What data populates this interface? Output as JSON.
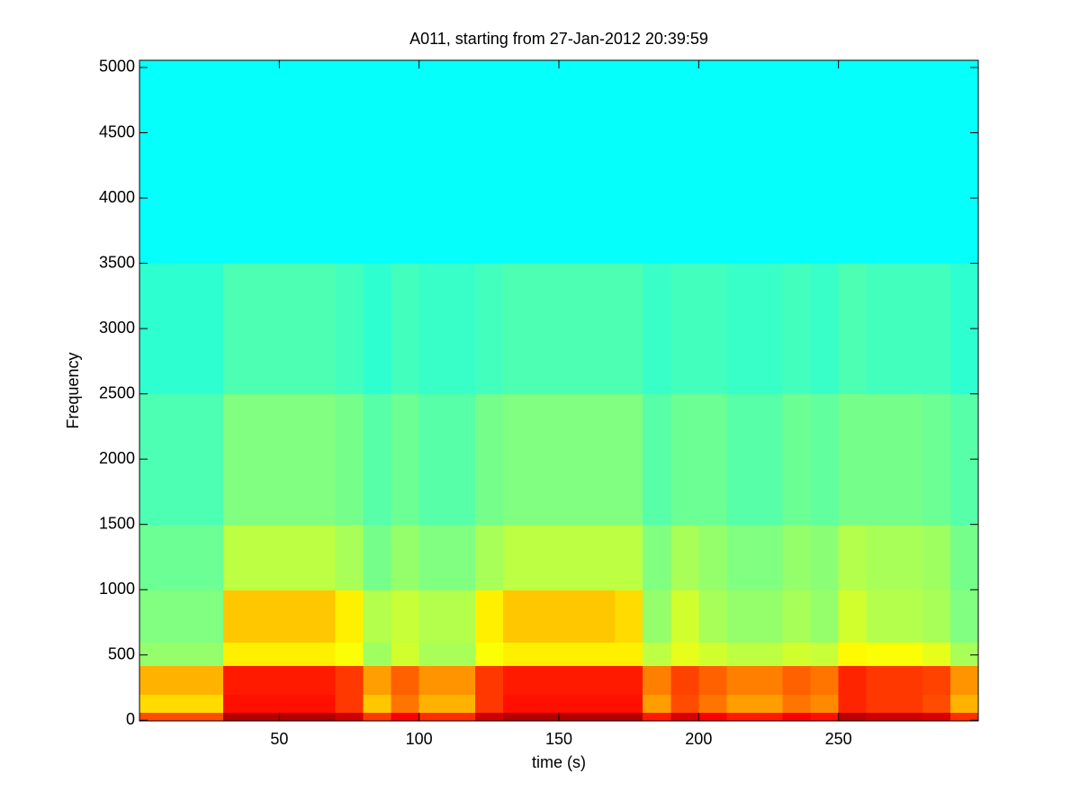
{
  "chart_data": {
    "type": "heatmap",
    "title": "A011, starting from 27-Jan-2012 20:39:59",
    "xlabel": "time (s)",
    "ylabel": "Frequency",
    "xlim": [
      0,
      300
    ],
    "ylim": [
      -5,
      5055
    ],
    "xticks": [
      50,
      100,
      150,
      200,
      250
    ],
    "yticks": [
      0,
      500,
      1000,
      1500,
      2000,
      2500,
      3000,
      3500,
      4000,
      4500,
      5000
    ],
    "colormap": "jet",
    "zlim": [
      0,
      1
    ],
    "xbins": [
      0,
      10,
      20,
      30,
      40,
      50,
      60,
      70,
      80,
      90,
      100,
      110,
      120,
      130,
      140,
      150,
      160,
      170,
      180,
      190,
      200,
      210,
      220,
      230,
      240,
      250,
      260,
      270,
      280,
      290,
      300
    ],
    "ybins": [
      0,
      60,
      200,
      420,
      600,
      1000,
      1500,
      2500,
      3500,
      5050
    ],
    "z": [
      [
        0.8,
        0.8,
        0.8,
        0.95,
        0.95,
        0.95,
        0.95,
        0.92,
        0.82,
        0.88,
        0.83,
        0.83,
        0.92,
        0.95,
        0.95,
        0.95,
        0.95,
        0.95,
        0.85,
        0.91,
        0.88,
        0.85,
        0.85,
        0.88,
        0.86,
        0.94,
        0.92,
        0.92,
        0.91,
        0.83
      ],
      [
        0.66,
        0.66,
        0.66,
        0.86,
        0.86,
        0.86,
        0.86,
        0.82,
        0.68,
        0.76,
        0.7,
        0.7,
        0.82,
        0.86,
        0.86,
        0.86,
        0.86,
        0.86,
        0.72,
        0.8,
        0.76,
        0.72,
        0.72,
        0.76,
        0.74,
        0.84,
        0.82,
        0.82,
        0.8,
        0.7
      ],
      [
        0.7,
        0.7,
        0.7,
        0.85,
        0.85,
        0.85,
        0.85,
        0.82,
        0.72,
        0.78,
        0.73,
        0.73,
        0.82,
        0.85,
        0.85,
        0.85,
        0.85,
        0.85,
        0.75,
        0.81,
        0.78,
        0.75,
        0.75,
        0.78,
        0.76,
        0.84,
        0.82,
        0.82,
        0.81,
        0.73
      ],
      [
        0.52,
        0.52,
        0.52,
        0.64,
        0.64,
        0.64,
        0.64,
        0.62,
        0.53,
        0.58,
        0.54,
        0.54,
        0.62,
        0.64,
        0.64,
        0.64,
        0.64,
        0.64,
        0.56,
        0.6,
        0.58,
        0.56,
        0.56,
        0.58,
        0.57,
        0.63,
        0.62,
        0.62,
        0.6,
        0.54
      ],
      [
        0.5,
        0.5,
        0.5,
        0.68,
        0.68,
        0.68,
        0.68,
        0.64,
        0.55,
        0.57,
        0.55,
        0.55,
        0.64,
        0.68,
        0.68,
        0.68,
        0.68,
        0.66,
        0.52,
        0.58,
        0.54,
        0.52,
        0.52,
        0.54,
        0.52,
        0.58,
        0.55,
        0.55,
        0.54,
        0.5
      ],
      [
        0.48,
        0.48,
        0.48,
        0.56,
        0.56,
        0.56,
        0.56,
        0.54,
        0.49,
        0.52,
        0.5,
        0.5,
        0.54,
        0.56,
        0.56,
        0.56,
        0.56,
        0.56,
        0.5,
        0.54,
        0.52,
        0.5,
        0.5,
        0.52,
        0.51,
        0.55,
        0.54,
        0.54,
        0.53,
        0.49
      ],
      [
        0.45,
        0.45,
        0.45,
        0.5,
        0.5,
        0.5,
        0.5,
        0.49,
        0.46,
        0.48,
        0.46,
        0.46,
        0.49,
        0.5,
        0.5,
        0.5,
        0.5,
        0.5,
        0.46,
        0.48,
        0.48,
        0.46,
        0.46,
        0.48,
        0.47,
        0.49,
        0.49,
        0.49,
        0.48,
        0.46
      ],
      [
        0.42,
        0.42,
        0.42,
        0.45,
        0.45,
        0.45,
        0.45,
        0.44,
        0.42,
        0.44,
        0.43,
        0.43,
        0.44,
        0.45,
        0.45,
        0.45,
        0.45,
        0.45,
        0.43,
        0.44,
        0.44,
        0.43,
        0.43,
        0.44,
        0.43,
        0.45,
        0.44,
        0.44,
        0.44,
        0.42
      ],
      [
        0.38,
        0.38,
        0.38,
        0.38,
        0.38,
        0.38,
        0.38,
        0.38,
        0.38,
        0.38,
        0.38,
        0.38,
        0.38,
        0.38,
        0.38,
        0.38,
        0.38,
        0.38,
        0.38,
        0.38,
        0.38,
        0.38,
        0.38,
        0.38,
        0.38,
        0.38,
        0.38,
        0.38,
        0.38,
        0.38
      ]
    ]
  }
}
